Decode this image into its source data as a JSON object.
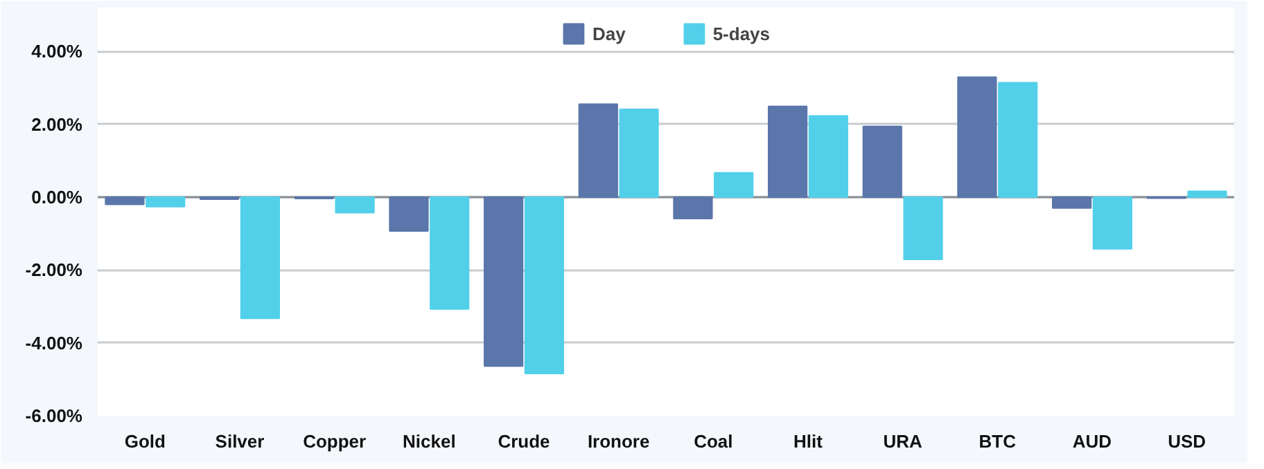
{
  "chart_data": {
    "type": "bar",
    "categories": [
      "Gold",
      "Silver",
      "Copper",
      "Nickel",
      "Crude",
      "Ironore",
      "Coal",
      "Hlit",
      "URA",
      "BTC",
      "AUD",
      "USD"
    ],
    "series": [
      {
        "name": "Day",
        "color": "#5a76aa",
        "values": [
          -0.2,
          -0.06,
          -0.04,
          -0.93,
          -4.64,
          2.55,
          -0.59,
          2.49,
          1.94,
          3.29,
          -0.3,
          -0.03
        ]
      },
      {
        "name": "5-days",
        "color": "#52d0ea",
        "values": [
          -0.26,
          -3.33,
          -0.43,
          -3.07,
          -4.84,
          2.41,
          0.67,
          2.23,
          -1.71,
          3.14,
          -1.42,
          0.16
        ]
      }
    ],
    "ylim": [
      -6,
      4
    ],
    "yticks": [
      {
        "value": -6,
        "label": "-6.00%"
      },
      {
        "value": -4,
        "label": "-4.00%"
      },
      {
        "value": -2,
        "label": "-2.00%"
      },
      {
        "value": 0,
        "label": "0.00%"
      },
      {
        "value": 2,
        "label": "2.00%"
      },
      {
        "value": 4,
        "label": "4.00%"
      }
    ],
    "grid": "y",
    "legend": "top"
  }
}
